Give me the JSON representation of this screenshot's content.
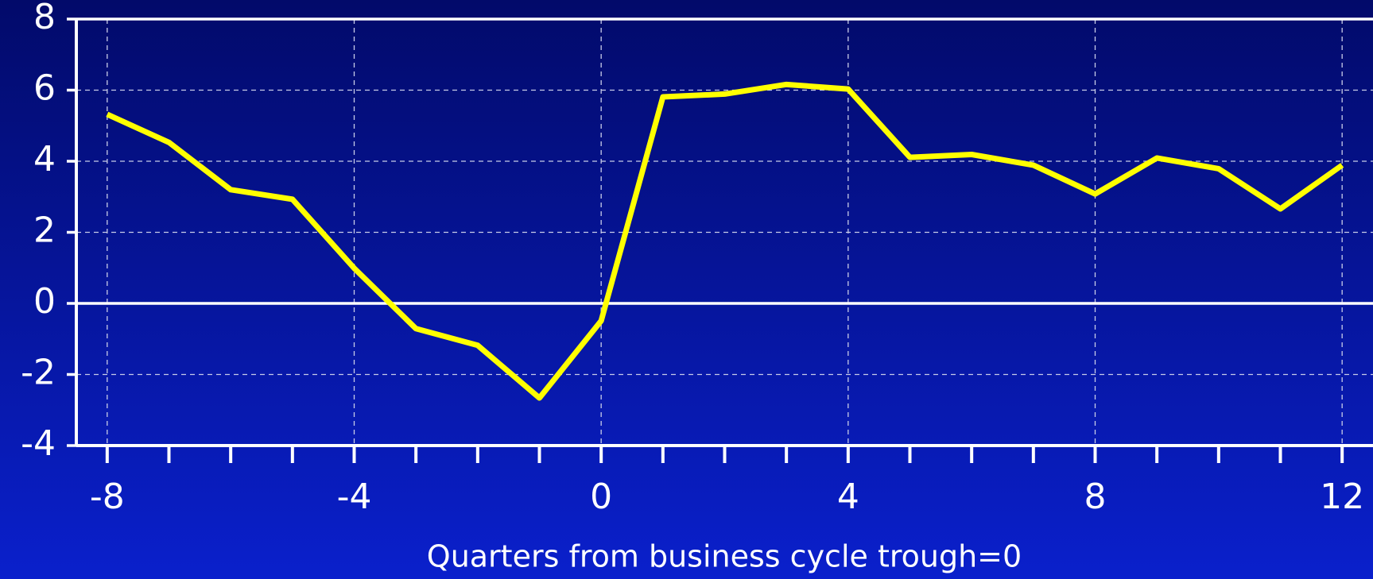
{
  "chart_data": {
    "type": "line",
    "xlabel": "Quarters from business cycle trough=0",
    "x": [
      -8,
      -7,
      -6,
      -5,
      -4,
      -3,
      -2,
      -1,
      0,
      1,
      2,
      3,
      4,
      5,
      6,
      7,
      8,
      9,
      10,
      11,
      12
    ],
    "series": [
      {
        "color": "#ffff00",
        "values": [
          5.32,
          4.53,
          3.2,
          2.93,
          0.99,
          -0.71,
          -1.18,
          -2.66,
          -0.49,
          5.81,
          5.89,
          6.16,
          6.03,
          4.11,
          4.19,
          3.89,
          3.08,
          4.09,
          3.79,
          2.66,
          3.89
        ]
      }
    ],
    "xlim": [
      -8.5,
      12.5
    ],
    "xticks": [
      -8,
      -4,
      0,
      4,
      8,
      12
    ],
    "ylim": [
      -4,
      8
    ],
    "yticks": [
      -4,
      -2,
      0,
      2,
      4,
      6,
      8
    ],
    "grid": true
  }
}
